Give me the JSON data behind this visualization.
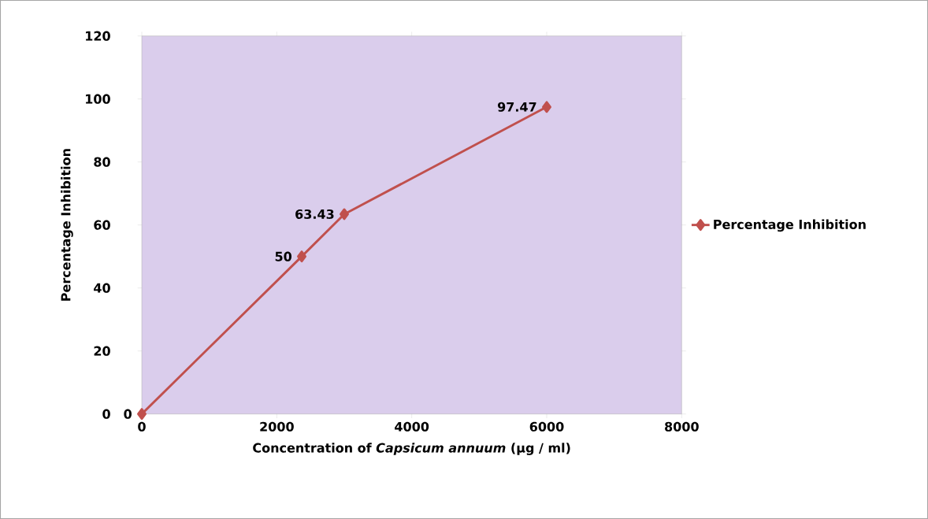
{
  "chart_data": {
    "type": "line",
    "xlabel": "Concentration of *Capsicum annuum* (µg / ml)",
    "ylabel": "Percentage Inhibition",
    "x": [
      0,
      2370,
      3000,
      6000
    ],
    "series": [
      {
        "name": "Percentage Inhibition",
        "color": "#c0504d",
        "values": [
          0,
          50,
          63.43,
          97.47
        ]
      }
    ],
    "xlim": [
      0,
      8000
    ],
    "xticks": [
      0,
      2000,
      4000,
      6000,
      8000
    ],
    "ylim": [
      0,
      120
    ],
    "yticks": [
      0,
      20,
      40,
      60,
      80,
      100,
      120
    ],
    "data_labels": true,
    "marker": "diamond",
    "line_style": "solid",
    "legend": "right",
    "grid": false
  }
}
